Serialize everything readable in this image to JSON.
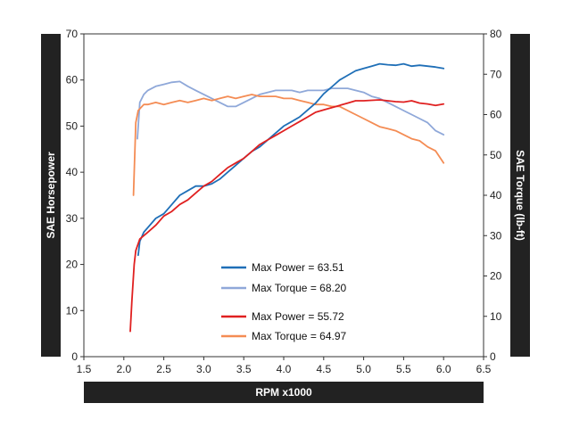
{
  "chart_data": {
    "type": "line",
    "title": "",
    "xlabel": "RPM x1000",
    "ylabel_left": "SAE Horsepower",
    "ylabel_right": "SAE Torque (lb-ft)",
    "xlim": [
      1.5,
      6.5
    ],
    "ylim_left": [
      0,
      70
    ],
    "ylim_right": [
      0,
      80
    ],
    "x_ticks": [
      "1.5",
      "2.0",
      "2.5",
      "3.0",
      "3.5",
      "4.0",
      "4.5",
      "5.0",
      "5.5",
      "6.0",
      "6.5"
    ],
    "y_ticks_left": [
      "0",
      "10",
      "20",
      "30",
      "40",
      "50",
      "60",
      "70"
    ],
    "y_ticks_right": [
      "0",
      "10",
      "20",
      "30",
      "40",
      "50",
      "60",
      "70",
      "80"
    ],
    "grid": false,
    "legend_position": "center-bottom",
    "series": [
      {
        "name": "Max Power = 63.51",
        "axis": "left",
        "color": "#1f6fb7",
        "x": [
          2.18,
          2.2,
          2.25,
          2.3,
          2.4,
          2.5,
          2.6,
          2.7,
          2.8,
          2.9,
          3.0,
          3.1,
          3.2,
          3.3,
          3.4,
          3.5,
          3.6,
          3.7,
          3.8,
          3.9,
          4.0,
          4.1,
          4.2,
          4.3,
          4.4,
          4.5,
          4.6,
          4.7,
          4.8,
          4.9,
          5.0,
          5.1,
          5.2,
          5.3,
          5.4,
          5.5,
          5.6,
          5.7,
          5.8,
          5.9,
          6.0
        ],
        "y": [
          22,
          25,
          27,
          28,
          30,
          31,
          33,
          35,
          36,
          37,
          37,
          37.5,
          38.5,
          40,
          41.5,
          43,
          44.5,
          45.5,
          47,
          48.5,
          50,
          51,
          52,
          53.5,
          55,
          57,
          58.5,
          60,
          61,
          62,
          62.5,
          63,
          63.5,
          63.3,
          63.2,
          63.5,
          63,
          63.2,
          63,
          62.8,
          62.5
        ]
      },
      {
        "name": "Max Torque = 68.20",
        "axis": "right",
        "color": "#8fa8d9",
        "x": [
          2.17,
          2.2,
          2.25,
          2.3,
          2.4,
          2.5,
          2.6,
          2.7,
          2.8,
          2.9,
          3.0,
          3.1,
          3.2,
          3.3,
          3.4,
          3.5,
          3.6,
          3.7,
          3.8,
          3.9,
          4.0,
          4.1,
          4.2,
          4.3,
          4.4,
          4.5,
          4.6,
          4.7,
          4.8,
          4.9,
          5.0,
          5.1,
          5.2,
          5.3,
          5.4,
          5.5,
          5.6,
          5.7,
          5.8,
          5.9,
          6.0
        ],
        "y": [
          54,
          63,
          65,
          66,
          67,
          67.5,
          68,
          68.2,
          67,
          66,
          65,
          64,
          63,
          62,
          62,
          63,
          64,
          65,
          65.5,
          66,
          66,
          66,
          65.5,
          66,
          66,
          66,
          66.5,
          66.5,
          66.5,
          66,
          65.5,
          64.5,
          64,
          63,
          62,
          61,
          60,
          59,
          58,
          56,
          55
        ]
      },
      {
        "name": "Max Power = 55.72",
        "axis": "left",
        "color": "#e02020",
        "x": [
          2.08,
          2.1,
          2.13,
          2.15,
          2.2,
          2.3,
          2.4,
          2.5,
          2.6,
          2.7,
          2.8,
          2.9,
          3.0,
          3.1,
          3.2,
          3.3,
          3.4,
          3.5,
          3.6,
          3.7,
          3.8,
          3.9,
          4.0,
          4.1,
          4.2,
          4.3,
          4.4,
          4.5,
          4.6,
          4.7,
          4.8,
          4.9,
          5.0,
          5.1,
          5.2,
          5.3,
          5.4,
          5.5,
          5.6,
          5.7,
          5.8,
          5.9,
          6.0
        ],
        "y": [
          5.5,
          12,
          20,
          23,
          25.5,
          27,
          28.5,
          30.5,
          31.5,
          33,
          34,
          35.5,
          37,
          38,
          39.5,
          41,
          42,
          43,
          44.5,
          46,
          47,
          48,
          49,
          50,
          51,
          52,
          53,
          53.5,
          54,
          54.5,
          55,
          55.5,
          55.5,
          55.6,
          55.7,
          55.5,
          55.3,
          55.2,
          55.5,
          55,
          54.8,
          54.5,
          54.8
        ]
      },
      {
        "name": "Max Torque = 64.97",
        "axis": "right",
        "color": "#f48c54",
        "x": [
          2.12,
          2.15,
          2.18,
          2.25,
          2.3,
          2.4,
          2.5,
          2.6,
          2.7,
          2.8,
          2.9,
          3.0,
          3.1,
          3.2,
          3.3,
          3.4,
          3.5,
          3.6,
          3.7,
          3.8,
          3.9,
          4.0,
          4.1,
          4.2,
          4.3,
          4.4,
          4.5,
          4.6,
          4.7,
          4.8,
          4.9,
          5.0,
          5.1,
          5.2,
          5.3,
          5.4,
          5.5,
          5.6,
          5.7,
          5.8,
          5.9,
          6.0
        ],
        "y": [
          40,
          58,
          61,
          62.5,
          62.5,
          63,
          62.5,
          63,
          63.5,
          63,
          63.5,
          64,
          63.5,
          64,
          64.5,
          64,
          64.5,
          64.97,
          64.5,
          64.5,
          64.5,
          64,
          64,
          63.5,
          63,
          62.5,
          62.5,
          62,
          62,
          61,
          60,
          59,
          58,
          57,
          56.5,
          56,
          55,
          54,
          53.5,
          52,
          51,
          48
        ]
      }
    ]
  }
}
